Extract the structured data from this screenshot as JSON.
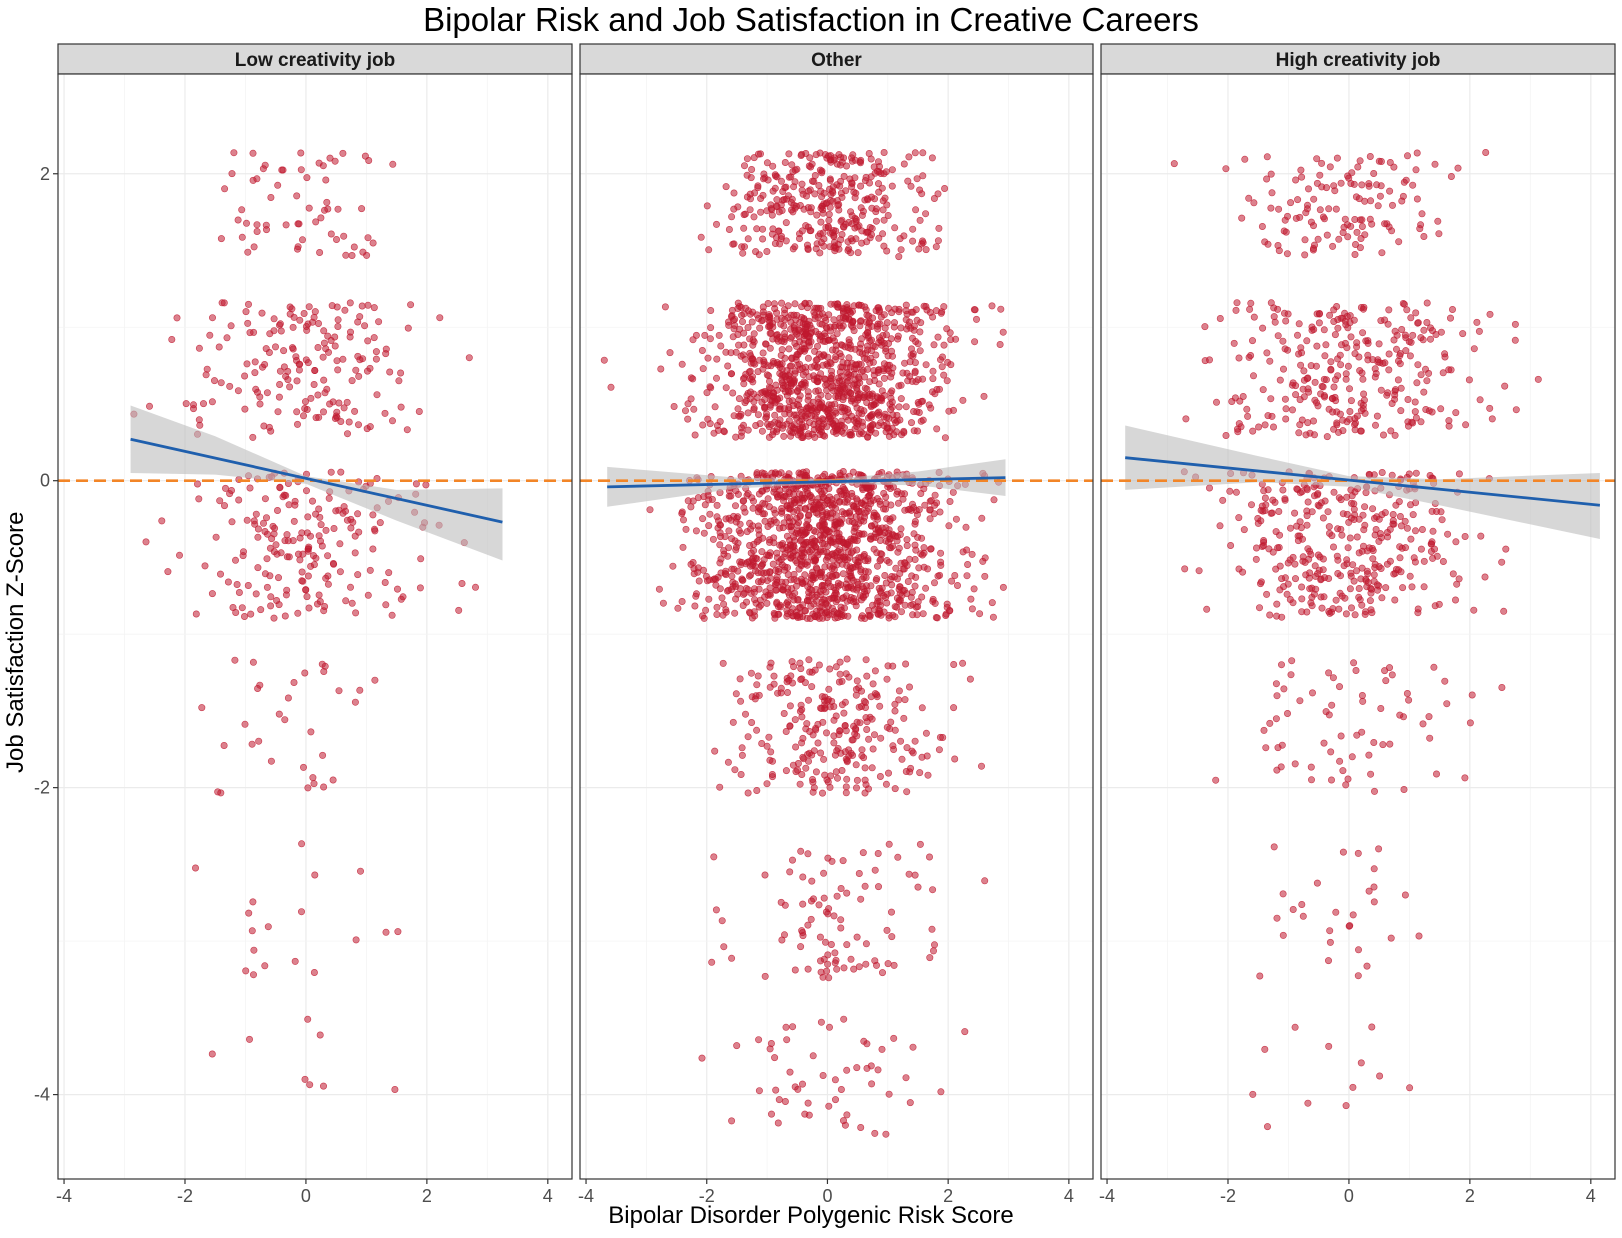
{
  "chart_data": {
    "type": "scatter",
    "title": "Bipolar Risk and Job Satisfaction in Creative Careers",
    "xlabel": "Bipolar Disorder Polygenic Risk Score",
    "ylabel": "Job Satisfaction Z-Score",
    "xlim": [
      -4.1,
      4.4
    ],
    "ylim": [
      -4.55,
      2.65
    ],
    "x_ticks": [
      -4,
      -2,
      0,
      2,
      4
    ],
    "x_tick_labels": [
      "-4",
      "-2",
      "0",
      "2",
      "4"
    ],
    "y_ticks": [
      -4,
      -2,
      0,
      2
    ],
    "y_tick_labels": [
      "-4",
      "-2",
      "0",
      "2"
    ],
    "grid": true,
    "reference_line": {
      "y": 0,
      "style": "dashed",
      "color": "#f28527"
    },
    "point_color": "#c0192f",
    "fit_color": "#1f5fad",
    "ci_color": "#bdbdbd",
    "facets": [
      {
        "label": "Low creativity job",
        "n_points": 500,
        "x_range": [
          -2.9,
          3.3
        ],
        "fit": {
          "x0": -2.9,
          "y0": 0.27,
          "x1": 3.25,
          "y1": -0.27
        },
        "ci": [
          [
            -2.9,
            0.49,
            0.05
          ],
          [
            -1.5,
            0.29,
            0.04
          ],
          [
            0.0,
            0.03,
            -0.02
          ],
          [
            1.5,
            -0.06,
            -0.26
          ],
          [
            3.25,
            -0.05,
            -0.52
          ]
        ]
      },
      {
        "label": "Other",
        "n_points": 3000,
        "x_range": [
          -3.7,
          3.0
        ],
        "fit": {
          "x0": -3.65,
          "y0": -0.04,
          "x1": 2.95,
          "y1": 0.02
        },
        "ci": [
          [
            -3.65,
            0.09,
            -0.17
          ],
          [
            -1.5,
            0.02,
            -0.05
          ],
          [
            0.0,
            0.01,
            -0.02
          ],
          [
            1.5,
            0.06,
            -0.03
          ],
          [
            2.95,
            0.14,
            -0.1
          ]
        ]
      },
      {
        "label": "High creativity job",
        "n_points": 900,
        "x_range": [
          -3.7,
          4.2
        ],
        "fit": {
          "x0": -3.7,
          "y0": 0.15,
          "x1": 4.15,
          "y1": -0.16
        },
        "ci": [
          [
            -3.7,
            0.36,
            -0.06
          ],
          [
            -1.5,
            0.16,
            -0.01
          ],
          [
            0.0,
            0.03,
            -0.04
          ],
          [
            1.5,
            0.01,
            -0.16
          ],
          [
            4.15,
            0.05,
            -0.38
          ]
        ]
      }
    ],
    "satisfaction_levels": [
      {
        "center": 1.8,
        "halfwidth": 0.34,
        "share": 0.12
      },
      {
        "center": 0.72,
        "halfwidth": 0.44,
        "share": 0.34
      },
      {
        "center": -0.42,
        "halfwidth": 0.48,
        "share": 0.39
      },
      {
        "center": -1.6,
        "halfwidth": 0.44,
        "share": 0.09
      },
      {
        "center": -2.8,
        "halfwidth": 0.44,
        "share": 0.03
      },
      {
        "center": -3.9,
        "halfwidth": 0.4,
        "share": 0.015
      }
    ]
  }
}
